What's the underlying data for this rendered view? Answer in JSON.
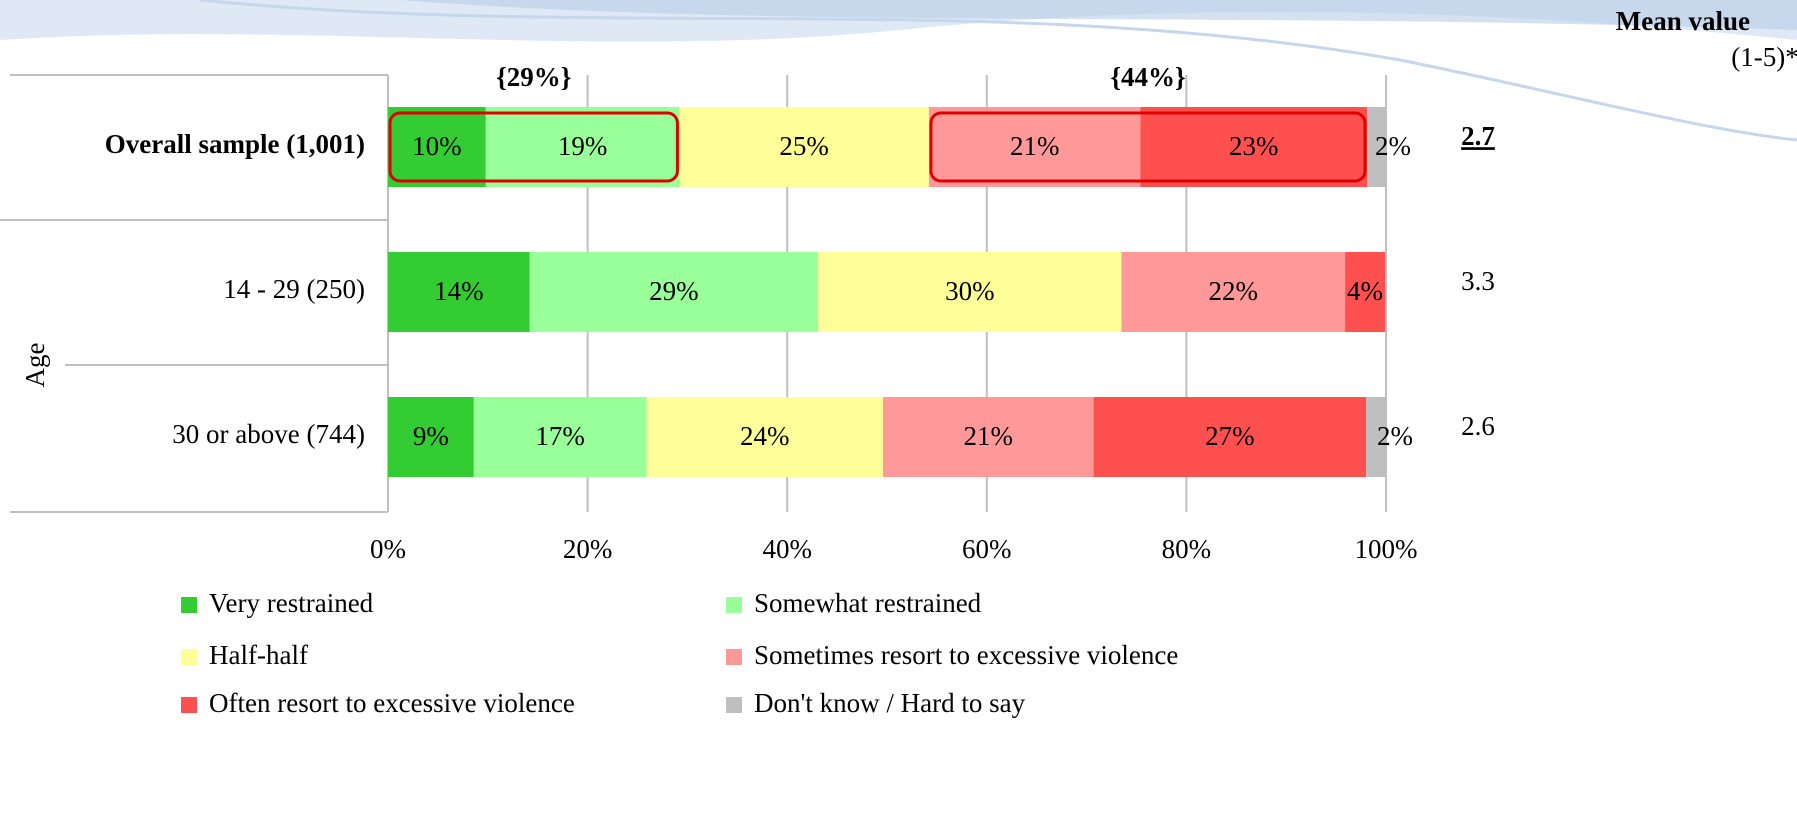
{
  "chart_data": {
    "type": "stacked-barh",
    "categories": [
      "Overall sample (1,001)",
      "14 - 29 (250)",
      "30 or above (744)"
    ],
    "group_label": "Age",
    "series": [
      {
        "name": "Very restrained",
        "color": "#33cc33",
        "values": [
          9.8,
          14.2,
          8.6
        ],
        "value_labels": [
          "10%",
          "14%",
          "9%"
        ]
      },
      {
        "name": "Somewhat restrained",
        "color": "#99ff99",
        "values": [
          19.4,
          28.9,
          17.3
        ],
        "value_labels": [
          "19%",
          "29%",
          "17%"
        ]
      },
      {
        "name": "Half-half",
        "color": "#ffff99",
        "values": [
          25.0,
          30.4,
          23.7
        ],
        "value_labels": [
          "25%",
          "30%",
          "24%"
        ]
      },
      {
        "name": "Sometimes resort to excessive violence",
        "color": "#ff9999",
        "values": [
          21.2,
          22.4,
          21.1
        ],
        "value_labels": [
          "21%",
          "22%",
          "21%"
        ]
      },
      {
        "name": "Often resort to excessive violence",
        "color": "#ff5050",
        "values": [
          22.7,
          4.0,
          27.3
        ],
        "value_labels": [
          "23%",
          "4%",
          "27%"
        ]
      },
      {
        "name": "Don't know / Hard to say",
        "color": "#bfbfbf",
        "values": [
          1.8,
          null,
          2.1
        ],
        "value_labels": [
          "2%",
          null,
          "2%"
        ]
      }
    ],
    "xlim": [
      0,
      100
    ],
    "xticks": [
      {
        "value": 0,
        "label": "0%"
      },
      {
        "value": 20,
        "label": "20%"
      },
      {
        "value": 40,
        "label": "40%"
      },
      {
        "value": 60,
        "label": "60%"
      },
      {
        "value": 80,
        "label": "80%"
      },
      {
        "value": 100,
        "label": "100%"
      }
    ],
    "grid": true,
    "annotations": [
      {
        "text": "{29%}",
        "color": "#66ee44",
        "series": [
          0,
          1
        ]
      },
      {
        "text": "{44%}",
        "color": "#ff2020",
        "series": [
          3,
          4
        ]
      }
    ],
    "mean_title": "Mean value",
    "mean_subtitle": "(1-5)*",
    "mean_values": [
      2.7,
      3.3,
      2.6
    ]
  }
}
